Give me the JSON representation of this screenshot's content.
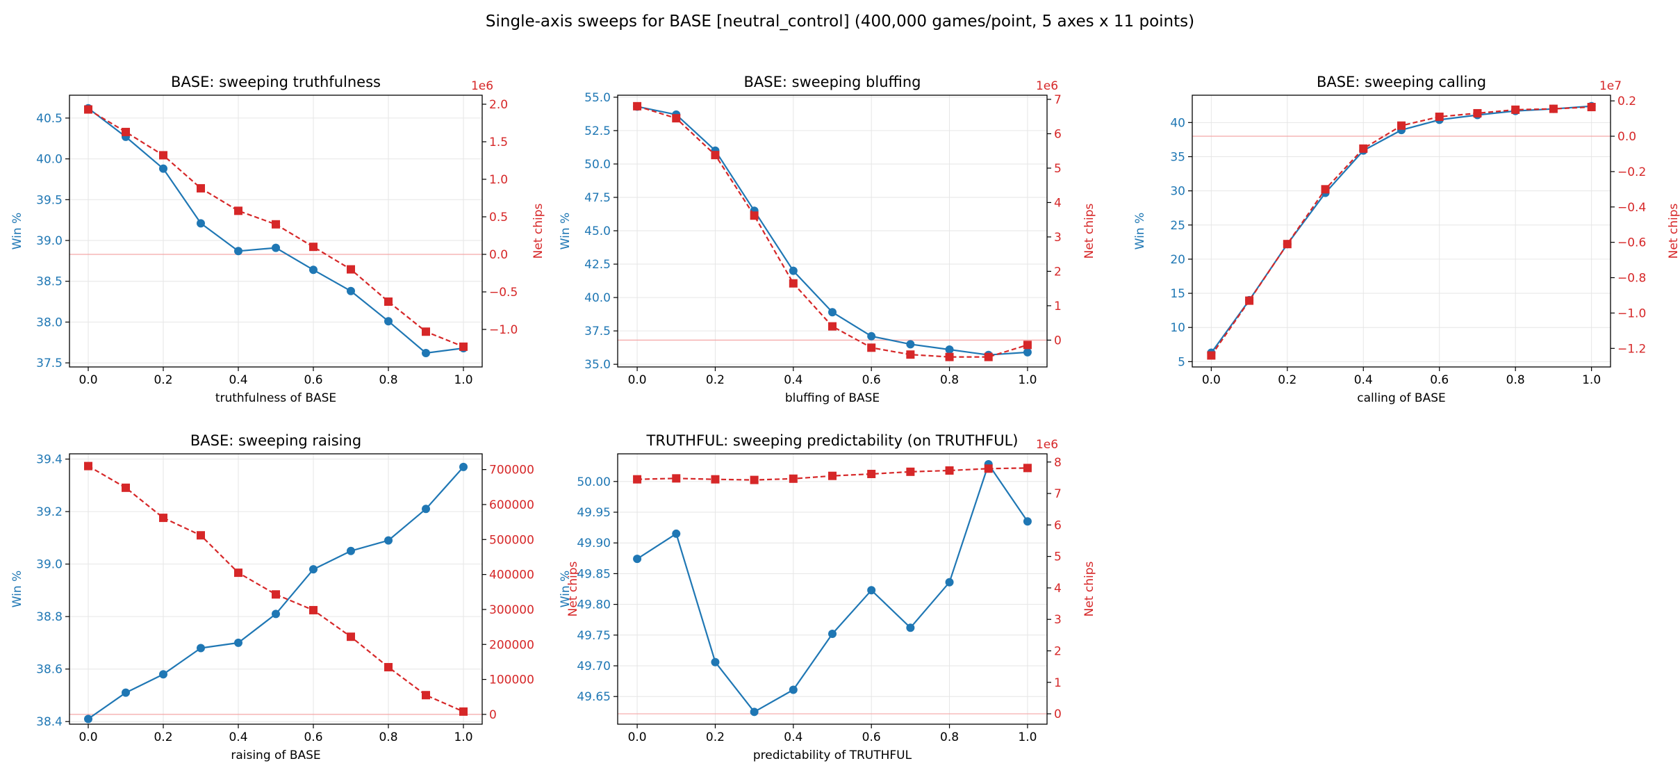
{
  "figure": {
    "title": "Single-axis sweeps for BASE  [neutral_control]  (400,000 games/point, 5 axes x 11 points)"
  },
  "colors": {
    "win": "#1f77b4",
    "chips": "#d62728",
    "zero_line": "#f4a6a6",
    "grid": "#e6e6e6"
  },
  "chart_data": [
    {
      "type": "line",
      "title": "BASE: sweeping truthfulness",
      "xlabel": "truthfulness of BASE",
      "ylabel": "Win %",
      "y2label": "Net chips",
      "y2_offset_label": "1e6",
      "x": [
        0.0,
        0.1,
        0.2,
        0.3,
        0.4,
        0.5,
        0.6,
        0.7,
        0.8,
        0.9,
        1.0
      ],
      "xlim": [
        -0.05,
        1.05
      ],
      "xticks": [
        0.0,
        0.2,
        0.4,
        0.6,
        0.8,
        1.0
      ],
      "xtick_labels": [
        "0.0",
        "0.2",
        "0.4",
        "0.6",
        "0.8",
        "1.0"
      ],
      "ylim": [
        37.45,
        40.78
      ],
      "yticks": [
        37.5,
        38.0,
        38.5,
        39.0,
        39.5,
        40.0,
        40.5
      ],
      "ytick_labels": [
        "37.5",
        "38.0",
        "38.5",
        "39.0",
        "39.5",
        "40.0",
        "40.5"
      ],
      "y2lim": [
        -1.5,
        2.12
      ],
      "y2ticks": [
        -1.0,
        -0.5,
        0.0,
        0.5,
        1.0,
        1.5,
        2.0
      ],
      "y2tick_labels": [
        "−1.0",
        "−0.5",
        "0.0",
        "0.5",
        "1.0",
        "1.5",
        "2.0"
      ],
      "zero_line": 0,
      "grid": true,
      "series": [
        {
          "name": "Win %",
          "axis": "left",
          "style": "solid",
          "marker": "circle",
          "values": [
            40.62,
            40.27,
            39.88,
            39.21,
            38.87,
            38.91,
            38.64,
            38.38,
            38.01,
            37.62,
            37.68
          ]
        },
        {
          "name": "Net chips",
          "axis": "right",
          "style": "dashed",
          "marker": "square",
          "values": [
            1.93,
            1.63,
            1.32,
            0.88,
            0.58,
            0.4,
            0.1,
            -0.2,
            -0.63,
            -1.03,
            -1.23
          ]
        }
      ]
    },
    {
      "type": "line",
      "title": "BASE: sweeping bluffing",
      "xlabel": "bluffing of BASE",
      "ylabel": "Win %",
      "y2label": "Net chips",
      "y2_offset_label": "1e6",
      "x": [
        0.0,
        0.1,
        0.2,
        0.3,
        0.4,
        0.5,
        0.6,
        0.7,
        0.8,
        0.9,
        1.0
      ],
      "xlim": [
        -0.05,
        1.05
      ],
      "xticks": [
        0.0,
        0.2,
        0.4,
        0.6,
        0.8,
        1.0
      ],
      "xtick_labels": [
        "0.0",
        "0.2",
        "0.4",
        "0.6",
        "0.8",
        "1.0"
      ],
      "ylim": [
        34.8,
        55.15
      ],
      "yticks": [
        35.0,
        37.5,
        40.0,
        42.5,
        45.0,
        47.5,
        50.0,
        52.5,
        55.0
      ],
      "ytick_labels": [
        "35.0",
        "37.5",
        "40.0",
        "42.5",
        "45.0",
        "47.5",
        "50.0",
        "52.5",
        "55.0"
      ],
      "y2lim": [
        -0.78,
        7.12
      ],
      "y2ticks": [
        0,
        1,
        2,
        3,
        4,
        5,
        6,
        7
      ],
      "y2tick_labels": [
        "0",
        "1",
        "2",
        "3",
        "4",
        "5",
        "6",
        "7"
      ],
      "zero_line": 0,
      "grid": true,
      "series": [
        {
          "name": "Win %",
          "axis": "left",
          "style": "solid",
          "marker": "circle",
          "values": [
            54.3,
            53.7,
            51.0,
            46.5,
            42.0,
            38.9,
            37.1,
            36.5,
            36.1,
            35.7,
            35.9
          ]
        },
        {
          "name": "Net chips",
          "axis": "right",
          "style": "dashed",
          "marker": "square",
          "values": [
            6.8,
            6.45,
            5.38,
            3.62,
            1.65,
            0.4,
            -0.22,
            -0.42,
            -0.49,
            -0.49,
            -0.14
          ]
        }
      ]
    },
    {
      "type": "line",
      "title": "BASE: sweeping calling",
      "xlabel": "calling of BASE",
      "ylabel": "Win %",
      "y2label": "Net chips",
      "y2_offset_label": "1e7",
      "x": [
        0.0,
        0.1,
        0.2,
        0.3,
        0.4,
        0.5,
        0.6,
        0.7,
        0.8,
        0.9,
        1.0
      ],
      "xlim": [
        -0.05,
        1.05
      ],
      "xticks": [
        0.0,
        0.2,
        0.4,
        0.6,
        0.8,
        1.0
      ],
      "xtick_labels": [
        "0.0",
        "0.2",
        "0.4",
        "0.6",
        "0.8",
        "1.0"
      ],
      "ylim": [
        4.22,
        44.0
      ],
      "yticks": [
        5,
        10,
        15,
        20,
        25,
        30,
        35,
        40
      ],
      "ytick_labels": [
        "5",
        "10",
        "15",
        "20",
        "25",
        "30",
        "35",
        "40"
      ],
      "y2lim": [
        -1.305,
        0.232
      ],
      "y2ticks": [
        -1.2,
        -1.0,
        -0.8,
        -0.6,
        -0.4,
        -0.2,
        0.0,
        0.2
      ],
      "y2tick_labels": [
        "−1.2",
        "−1.0",
        "−0.8",
        "−0.6",
        "−0.4",
        "−0.2",
        "0.0",
        "0.2"
      ],
      "zero_line": 0,
      "grid": true,
      "series": [
        {
          "name": "Win %",
          "axis": "left",
          "style": "solid",
          "marker": "circle",
          "values": [
            6.3,
            14.0,
            22.2,
            29.7,
            35.9,
            38.9,
            40.4,
            41.1,
            41.7,
            42.0,
            42.4
          ]
        },
        {
          "name": "Net chips",
          "axis": "right",
          "style": "dashed",
          "marker": "square",
          "values": [
            -1.24,
            -0.93,
            -0.61,
            -0.3,
            -0.07,
            0.06,
            0.11,
            0.13,
            0.15,
            0.155,
            0.165
          ]
        }
      ]
    },
    {
      "type": "line",
      "title": "BASE: sweeping raising",
      "xlabel": "raising of BASE",
      "ylabel": "Win %",
      "y2label": "Net chips",
      "y2_offset_label": "",
      "x": [
        0.0,
        0.1,
        0.2,
        0.3,
        0.4,
        0.5,
        0.6,
        0.7,
        0.8,
        0.9,
        1.0
      ],
      "xlim": [
        -0.05,
        1.05
      ],
      "xticks": [
        0.0,
        0.2,
        0.4,
        0.6,
        0.8,
        1.0
      ],
      "xtick_labels": [
        "0.0",
        "0.2",
        "0.4",
        "0.6",
        "0.8",
        "1.0"
      ],
      "ylim": [
        38.39,
        39.42
      ],
      "yticks": [
        38.4,
        38.6,
        38.8,
        39.0,
        39.2,
        39.4
      ],
      "ytick_labels": [
        "38.4",
        "38.6",
        "38.8",
        "39.0",
        "39.2",
        "39.4"
      ],
      "y2lim": [
        -28000,
        745000
      ],
      "y2ticks": [
        0,
        100000,
        200000,
        300000,
        400000,
        500000,
        600000,
        700000
      ],
      "y2tick_labels": [
        "0",
        "100000",
        "200000",
        "300000",
        "400000",
        "500000",
        "600000",
        "700000"
      ],
      "zero_line": 0,
      "grid": true,
      "series": [
        {
          "name": "Win %",
          "axis": "left",
          "style": "solid",
          "marker": "circle",
          "values": [
            38.41,
            38.51,
            38.58,
            38.68,
            38.7,
            38.81,
            38.98,
            39.05,
            39.09,
            39.21,
            39.37
          ]
        },
        {
          "name": "Net chips",
          "axis": "right",
          "style": "dashed",
          "marker": "square",
          "values": [
            710000,
            648000,
            562000,
            512000,
            405000,
            343000,
            298000,
            222000,
            135000,
            55000,
            8000
          ]
        }
      ]
    },
    {
      "type": "line",
      "title": "TRUTHFUL: sweeping predictability (on TRUTHFUL)",
      "xlabel": "predictability of TRUTHFUL",
      "ylabel": "Win %",
      "y2label": "Net chips",
      "y2_offset_label": "1e6",
      "x": [
        0.0,
        0.1,
        0.2,
        0.3,
        0.4,
        0.5,
        0.6,
        0.7,
        0.8,
        0.9,
        1.0
      ],
      "xlim": [
        -0.05,
        1.05
      ],
      "xticks": [
        0.0,
        0.2,
        0.4,
        0.6,
        0.8,
        1.0
      ],
      "xtick_labels": [
        "0.0",
        "0.2",
        "0.4",
        "0.6",
        "0.8",
        "1.0"
      ],
      "ylim": [
        49.605,
        50.045
      ],
      "yticks": [
        49.65,
        49.7,
        49.75,
        49.8,
        49.85,
        49.9,
        49.95,
        50.0
      ],
      "ytick_labels": [
        "49.65",
        "49.70",
        "49.75",
        "49.80",
        "49.85",
        "49.90",
        "49.95",
        "50.00"
      ],
      "y2lim": [
        -0.33,
        8.26
      ],
      "y2ticks": [
        0,
        1,
        2,
        3,
        4,
        5,
        6,
        7,
        8
      ],
      "y2tick_labels": [
        "0",
        "1",
        "2",
        "3",
        "4",
        "5",
        "6",
        "7",
        "8"
      ],
      "zero_line": 0,
      "grid": true,
      "series": [
        {
          "name": "Win %",
          "axis": "left",
          "style": "solid",
          "marker": "circle",
          "values": [
            49.874,
            49.915,
            49.706,
            49.625,
            49.661,
            49.752,
            49.823,
            49.762,
            49.836,
            50.028,
            49.935
          ]
        },
        {
          "name": "Net chips",
          "axis": "right",
          "style": "dashed",
          "marker": "square",
          "values": [
            7.45,
            7.48,
            7.45,
            7.43,
            7.47,
            7.56,
            7.62,
            7.69,
            7.73,
            7.79,
            7.81
          ]
        }
      ]
    }
  ]
}
